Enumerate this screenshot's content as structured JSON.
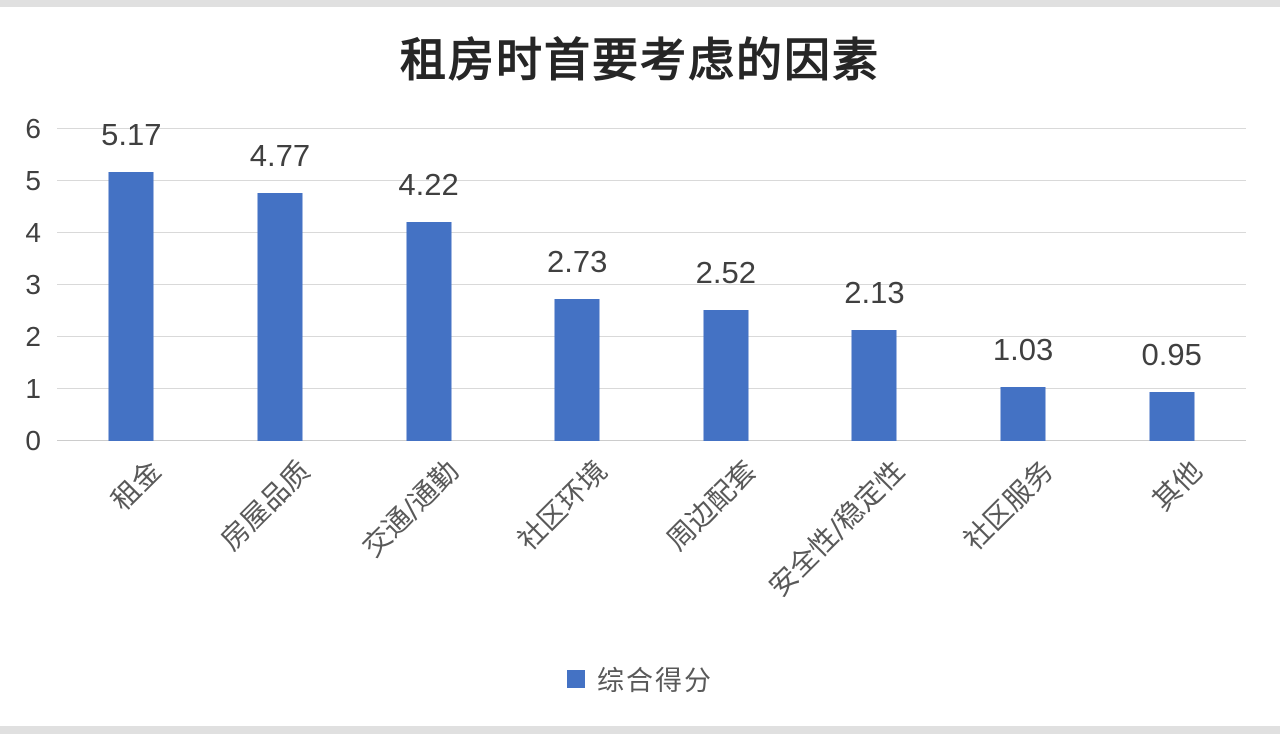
{
  "chart_data": {
    "type": "bar",
    "title": "租房时首要考虑的因素",
    "categories": [
      "租金",
      "房屋品质",
      "交通/通勤",
      "社区环境",
      "周边配套",
      "安全性/稳定性",
      "社区服务",
      "其他"
    ],
    "series": [
      {
        "name": "综合得分",
        "values": [
          5.17,
          4.77,
          4.22,
          2.73,
          2.52,
          2.13,
          1.03,
          0.95
        ]
      }
    ],
    "data_labels": [
      "5.17",
      "4.77",
      "4.22",
      "2.73",
      "2.52",
      "2.13",
      "1.03",
      "0.95"
    ],
    "xlabel": "",
    "ylabel": "",
    "ylim": [
      0,
      6
    ],
    "yticks": [
      0,
      1,
      2,
      3,
      4,
      5,
      6
    ],
    "grid": true,
    "category_rotation_deg": 45,
    "legend": {
      "label": "综合得分",
      "position": "bottom"
    },
    "colors": {
      "bar": "#4472c4",
      "gridline": "#d9d9d9",
      "axis_text": "#404040",
      "data_label_text": "#404040",
      "category_text": "#595959",
      "title_text": "#262626"
    }
  }
}
